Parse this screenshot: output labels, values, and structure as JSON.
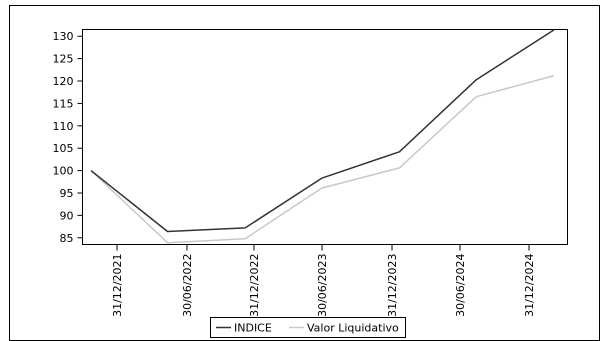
{
  "chart_data": {
    "type": "line",
    "x": [
      "31/12/2021",
      "30/06/2022",
      "31/12/2022",
      "30/06/2023",
      "31/12/2023",
      "30/06/2024",
      "31/12/2024"
    ],
    "x_positions_days": [
      0,
      181,
      365,
      546,
      730,
      912,
      1096
    ],
    "ylim": [
      83.5,
      131.5
    ],
    "yticks": [
      85,
      90,
      95,
      100,
      105,
      110,
      115,
      120,
      125,
      130
    ],
    "grid": false,
    "legend_position": "bottom-center",
    "series": [
      {
        "name": "INDICE",
        "color": "#333333",
        "points": [
          {
            "date": "31/12/2021",
            "value": 100
          },
          {
            "date": "30/06/2022",
            "value": 86.4
          },
          {
            "date": "31/12/2022",
            "value": 87.2
          },
          {
            "date": "30/06/2023",
            "value": 98.3
          },
          {
            "date": "31/12/2023",
            "value": 104.2
          },
          {
            "date": "30/06/2024",
            "value": 120.3
          },
          {
            "date": "31/12/2024",
            "value": 131.4
          }
        ]
      },
      {
        "name": "Valor Liquidativo",
        "color": "#c8c8c8",
        "points": [
          {
            "date": "31/12/2021",
            "value": 100
          },
          {
            "date": "30/06/2022",
            "value": 83.9
          },
          {
            "date": "31/12/2022",
            "value": 84.8
          },
          {
            "date": "30/06/2023",
            "value": 96.1
          },
          {
            "date": "31/12/2023",
            "value": 100.6
          },
          {
            "date": "30/06/2024",
            "value": 116.5
          },
          {
            "date": "31/12/2024",
            "value": 121.2
          }
        ]
      }
    ]
  }
}
